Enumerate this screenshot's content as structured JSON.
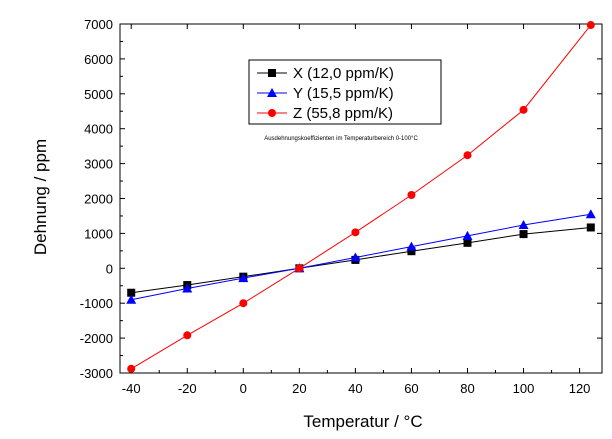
{
  "chart_data": {
    "type": "line",
    "xlabel": "Temperatur / °C",
    "ylabel": "Dehnung / ppm",
    "xlim": [
      -44,
      128
    ],
    "ylim": [
      -3000,
      7000
    ],
    "xticks": [
      -40,
      -20,
      0,
      20,
      40,
      60,
      80,
      100,
      120
    ],
    "yticks": [
      -3000,
      -2000,
      -1000,
      0,
      1000,
      2000,
      3000,
      4000,
      5000,
      6000,
      7000
    ],
    "x": [
      -40,
      -20,
      0,
      20,
      40,
      60,
      80,
      100,
      124
    ],
    "series": [
      {
        "name": "X (12,0 ppm/K)",
        "color": "#000000",
        "marker": "square",
        "values": [
          -700,
          -480,
          -240,
          0,
          240,
          490,
          730,
          980,
          1170
        ]
      },
      {
        "name": "Y (15,5 ppm/K)",
        "color": "#0000ff",
        "marker": "triangle",
        "values": [
          -900,
          -580,
          -280,
          0,
          310,
          620,
          930,
          1240,
          1550
        ]
      },
      {
        "name": "Z (55,8 ppm/K)",
        "color": "#ff0000",
        "marker": "circle",
        "values": [
          -2880,
          -1920,
          -1000,
          0,
          1030,
          2100,
          3240,
          4540,
          6970
        ]
      }
    ],
    "legend": {
      "position": "top-center"
    },
    "annotation": "Ausdehnungskoeffizienten im Temperaturbereich 0-100°C",
    "grid": false
  }
}
